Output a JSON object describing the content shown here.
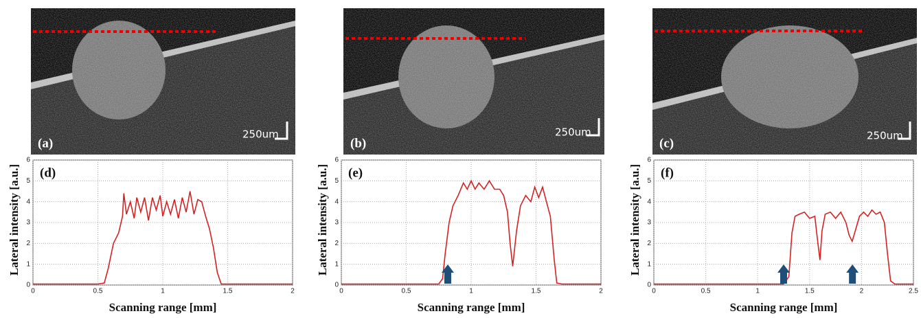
{
  "images": [
    {
      "label": "(a)",
      "scale_bar": "250um"
    },
    {
      "label": "(b)",
      "scale_bar": "250um"
    },
    {
      "label": "(c)",
      "scale_bar": "250um"
    }
  ],
  "chart_data": [
    {
      "type": "line",
      "panel_label": "(d)",
      "x_label": "Scanning range [mm]",
      "y_label": "Lateral intensity [a.u.]",
      "xlim": [
        0,
        2
      ],
      "xticks": [
        0,
        0.5,
        1,
        1.5,
        2
      ],
      "ylim": [
        0,
        6
      ],
      "yticks": [
        0,
        1,
        2,
        3,
        4,
        5,
        6
      ],
      "grid": true,
      "series": [
        {
          "color": "#d42222",
          "x": [
            0,
            0.5,
            0.55,
            0.58,
            0.62,
            0.66,
            0.69,
            0.7,
            0.72,
            0.75,
            0.78,
            0.8,
            0.83,
            0.86,
            0.89,
            0.92,
            0.95,
            0.98,
            1.0,
            1.03,
            1.06,
            1.09,
            1.12,
            1.15,
            1.18,
            1.21,
            1.24,
            1.27,
            1.3,
            1.33,
            1.36,
            1.39,
            1.42,
            1.45,
            2
          ],
          "values": [
            0.05,
            0.05,
            0.1,
            0.8,
            2,
            2.5,
            3.3,
            4.4,
            3.4,
            4.0,
            3.2,
            4.2,
            3.5,
            4.2,
            3.1,
            4.2,
            3.6,
            4.3,
            3.3,
            4.0,
            3.4,
            4.1,
            3.2,
            4.2,
            3.5,
            4.5,
            3.4,
            4.1,
            4.0,
            3.3,
            2.7,
            1.8,
            0.6,
            0.05,
            0.05
          ]
        }
      ]
    },
    {
      "type": "line",
      "panel_label": "(e)",
      "x_label": "Scanning range [mm]",
      "y_label": "Lateral intensity [a.u.]",
      "xlim": [
        0,
        2
      ],
      "xticks": [
        0,
        0.5,
        1,
        1.5,
        2
      ],
      "ylim": [
        0,
        6
      ],
      "yticks": [
        0,
        1,
        2,
        3,
        4,
        5,
        6
      ],
      "grid": true,
      "series": [
        {
          "color": "#d42222",
          "x": [
            0,
            0.75,
            0.78,
            0.8,
            0.83,
            0.86,
            0.9,
            0.94,
            0.97,
            1.0,
            1.03,
            1.06,
            1.1,
            1.14,
            1.18,
            1.22,
            1.25,
            1.28,
            1.3,
            1.32,
            1.35,
            1.38,
            1.42,
            1.46,
            1.49,
            1.52,
            1.55,
            1.58,
            1.61,
            1.64,
            1.66,
            1.7,
            2
          ],
          "values": [
            0.05,
            0.05,
            0.3,
            1.5,
            3,
            3.8,
            4.3,
            4.9,
            4.6,
            5.0,
            4.6,
            4.9,
            4.6,
            5.0,
            4.6,
            4.6,
            4.3,
            3.5,
            2.0,
            0.9,
            2.6,
            3.8,
            4.3,
            4.0,
            4.7,
            4.2,
            4.7,
            4.0,
            3.3,
            1.2,
            0.1,
            0.05,
            0.05
          ]
        }
      ]
    },
    {
      "type": "line",
      "panel_label": "(f)",
      "x_label": "Scanning range [mm]",
      "y_label": "Lateral intensity [a.u.]",
      "xlim": [
        0,
        2.5
      ],
      "xticks": [
        0,
        0.5,
        1,
        1.5,
        2,
        2.5
      ],
      "ylim": [
        0,
        6
      ],
      "yticks": [
        0,
        1,
        2,
        3,
        4,
        5,
        6
      ],
      "grid": true,
      "series": [
        {
          "color": "#d42222",
          "x": [
            0,
            1.25,
            1.3,
            1.33,
            1.36,
            1.4,
            1.45,
            1.5,
            1.55,
            1.58,
            1.6,
            1.62,
            1.65,
            1.7,
            1.75,
            1.8,
            1.85,
            1.88,
            1.91,
            1.94,
            1.98,
            2.02,
            2.06,
            2.1,
            2.14,
            2.18,
            2.22,
            2.25,
            2.28,
            2.32,
            2.5
          ],
          "values": [
            0.05,
            0.05,
            0.4,
            2.5,
            3.3,
            3.4,
            3.5,
            3.2,
            3.3,
            2.0,
            1.2,
            2.6,
            3.4,
            3.5,
            3.2,
            3.5,
            3.0,
            2.4,
            2.1,
            2.6,
            3.3,
            3.5,
            3.3,
            3.6,
            3.4,
            3.5,
            3.0,
            1.5,
            0.2,
            0.05,
            0.05
          ]
        }
      ]
    }
  ]
}
